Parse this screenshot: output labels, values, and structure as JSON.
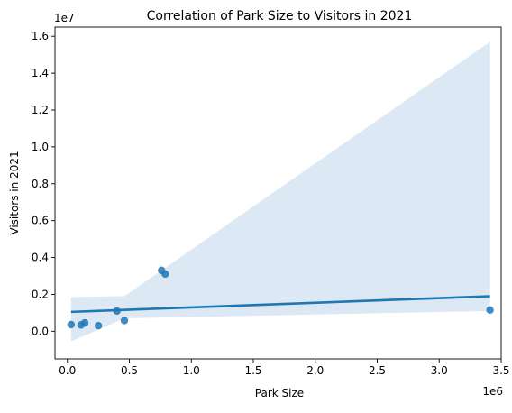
{
  "chart_data": {
    "type": "scatter",
    "title": "Correlation of Park Size to Visitors in 2021",
    "xlabel": "Park Size",
    "ylabel": "Visitors in 2021",
    "x_offset_label": "1e6",
    "y_offset_label": "1e7",
    "xlim": [
      -0.1,
      3.5
    ],
    "ylim": [
      -0.15,
      1.65
    ],
    "x_ticks": [
      0.0,
      0.5,
      1.0,
      1.5,
      2.0,
      2.5,
      3.0,
      3.5
    ],
    "x_tick_labels": [
      "0.0",
      "0.5",
      "1.0",
      "1.5",
      "2.0",
      "2.5",
      "3.0",
      "3.5"
    ],
    "y_ticks": [
      0.0,
      0.2,
      0.4,
      0.6,
      0.8,
      1.0,
      1.2,
      1.4,
      1.6
    ],
    "y_tick_labels": [
      "0.0",
      "0.2",
      "0.4",
      "0.6",
      "0.8",
      "1.0",
      "1.2",
      "1.4",
      "1.6"
    ],
    "grid": false,
    "points": [
      {
        "x": 0.03,
        "y": 0.036
      },
      {
        "x": 0.11,
        "y": 0.034
      },
      {
        "x": 0.14,
        "y": 0.045
      },
      {
        "x": 0.25,
        "y": 0.03
      },
      {
        "x": 0.4,
        "y": 0.11
      },
      {
        "x": 0.46,
        "y": 0.058
      },
      {
        "x": 0.76,
        "y": 0.33
      },
      {
        "x": 0.79,
        "y": 0.31
      },
      {
        "x": 3.41,
        "y": 0.115
      }
    ],
    "regression_line": {
      "x": [
        0.03,
        3.41
      ],
      "y": [
        0.105,
        0.19
      ]
    },
    "confidence_band": {
      "x": [
        0.03,
        0.46,
        3.41
      ],
      "upper": [
        0.185,
        0.19,
        1.57
      ],
      "lower": [
        -0.055,
        0.07,
        0.11
      ]
    },
    "colors": {
      "point": "#1f77b4",
      "line": "#1f77b4",
      "band": "#dce8f3"
    }
  }
}
